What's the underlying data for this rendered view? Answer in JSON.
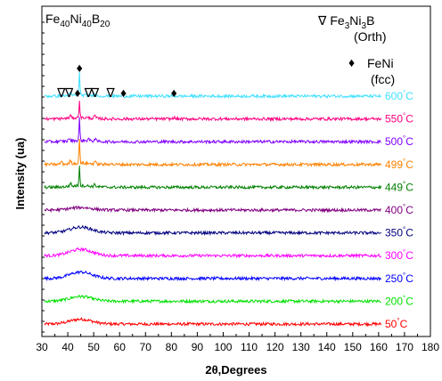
{
  "chart_data": {
    "type": "line",
    "title": "",
    "xlabel": "2θ,Degrees",
    "ylabel": "Intensity (ua)",
    "xlim": [
      30,
      180
    ],
    "x_ticks": [
      30,
      40,
      50,
      60,
      70,
      80,
      90,
      100,
      110,
      120,
      130,
      140,
      150,
      160,
      170,
      180
    ],
    "x_range": [
      31,
      161
    ],
    "grid": false,
    "composition": {
      "base": "Fe",
      "s1": "40",
      "m": "Ni",
      "s2": "40",
      "n": "B",
      "s3": "20"
    },
    "legend": {
      "phase1": {
        "symbol": "∇",
        "a": "Fe",
        "as": "3",
        "b": "Ni",
        "bs": "3",
        "c": "B",
        "note": "(Orth)"
      },
      "phase2": {
        "symbol": "♦",
        "name": "FeNi",
        "note": "(fcc)"
      }
    },
    "peak_markers": [
      {
        "symbol": "♦",
        "x": 44.5,
        "level": "high"
      },
      {
        "symbol": "∇",
        "x": 37.5,
        "level": "low"
      },
      {
        "symbol": "∇",
        "x": 40.5,
        "level": "low"
      },
      {
        "symbol": "♦",
        "x": 43.8,
        "level": "low"
      },
      {
        "symbol": "∇",
        "x": 48.0,
        "level": "low"
      },
      {
        "symbol": "∇",
        "x": 50.5,
        "level": "low"
      },
      {
        "symbol": "∇",
        "x": 56.5,
        "level": "low"
      },
      {
        "symbol": "♦",
        "x": 61.5,
        "level": "low"
      },
      {
        "symbol": "♦",
        "x": 81.0,
        "level": "low"
      }
    ],
    "series": [
      {
        "name": "50°C",
        "temp": "50",
        "color": "#ff0000",
        "offset": 0,
        "hump": 1.5,
        "peaks": []
      },
      {
        "name": "200°C",
        "temp": "200",
        "color": "#00e000",
        "offset": 1,
        "hump": 1.5,
        "peaks": []
      },
      {
        "name": "250°C",
        "temp": "250",
        "color": "#0000ff",
        "offset": 2,
        "hump": 2.0,
        "peaks": []
      },
      {
        "name": "300°C",
        "temp": "300",
        "color": "#ff00ff",
        "offset": 3,
        "hump": 2.0,
        "peaks": []
      },
      {
        "name": "350°C",
        "temp": "350",
        "color": "#000080",
        "offset": 4,
        "hump": 1.8,
        "peaks": []
      },
      {
        "name": "400°C",
        "temp": "400",
        "color": "#800080",
        "offset": 5,
        "hump": 0.8,
        "peaks": []
      },
      {
        "name": "449°C",
        "temp": "449",
        "color": "#008000",
        "offset": 6,
        "hump": 0.5,
        "peaks": [
          [
            44.5,
            6.5
          ],
          [
            41.0,
            1.0
          ],
          [
            50.5,
            0.8
          ]
        ]
      },
      {
        "name": "499°C",
        "temp": "499",
        "color": "#ff8000",
        "offset": 7,
        "hump": 0.4,
        "peaks": [
          [
            44.5,
            8.0
          ],
          [
            37.5,
            1.0
          ],
          [
            41.0,
            1.1
          ],
          [
            50.5,
            0.9
          ],
          [
            56.5,
            0.6
          ]
        ]
      },
      {
        "name": "500°C",
        "temp": "500",
        "color": "#8000ff",
        "offset": 8,
        "hump": 0.4,
        "peaks": [
          [
            44.5,
            7.0
          ],
          [
            40.5,
            0.9
          ],
          [
            48.0,
            0.7
          ],
          [
            50.5,
            0.8
          ]
        ]
      },
      {
        "name": "550°C",
        "temp": "550",
        "color": "#ff0080",
        "offset": 9,
        "hump": 0.4,
        "peaks": [
          [
            44.5,
            5.5
          ],
          [
            41.0,
            0.8
          ],
          [
            50.5,
            0.9
          ],
          [
            81.0,
            0.5
          ]
        ]
      },
      {
        "name": "600°C",
        "temp": "600",
        "color": "#40e0ff",
        "offset": 10,
        "hump": 0.3,
        "peaks": [
          [
            44.5,
            7.5
          ],
          [
            41.0,
            0.8
          ],
          [
            50.5,
            0.7
          ]
        ]
      }
    ]
  }
}
